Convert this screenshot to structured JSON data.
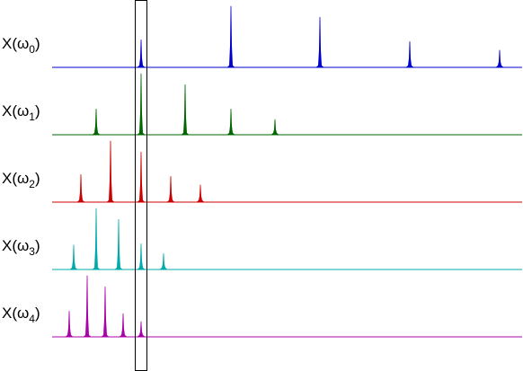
{
  "chart_data": {
    "type": "line",
    "title": "",
    "xlabel": "",
    "ylabel": "",
    "grid": false,
    "legend": "none",
    "x_range": [
      0,
      582
    ],
    "highlight_window": {
      "x_start": 150,
      "x_end": 163
    },
    "series": [
      {
        "label_base": "X(ω",
        "label_sub": "0",
        "label_close": ")",
        "color": "#0000cc",
        "peaks": [
          {
            "x": 157,
            "height": 0.45
          },
          {
            "x": 257,
            "height": 1.0
          },
          {
            "x": 356,
            "height": 0.82
          },
          {
            "x": 456,
            "height": 0.42
          },
          {
            "x": 556,
            "height": 0.28
          }
        ]
      },
      {
        "label_base": "X(ω",
        "label_sub": "1",
        "label_close": ")",
        "color": "#006600",
        "peaks": [
          {
            "x": 107,
            "height": 0.42
          },
          {
            "x": 157,
            "height": 1.0
          },
          {
            "x": 206,
            "height": 0.82
          },
          {
            "x": 257,
            "height": 0.42
          },
          {
            "x": 306,
            "height": 0.25
          }
        ]
      },
      {
        "label_base": "X(ω",
        "label_sub": "2",
        "label_close": ")",
        "color": "#cc0000",
        "peaks": [
          {
            "x": 90,
            "height": 0.45
          },
          {
            "x": 123,
            "height": 1.0
          },
          {
            "x": 157,
            "height": 0.82
          },
          {
            "x": 190,
            "height": 0.42
          },
          {
            "x": 223,
            "height": 0.28
          }
        ]
      },
      {
        "label_base": "X(ω",
        "label_sub": "3",
        "label_close": ")",
        "color": "#00aaaa",
        "peaks": [
          {
            "x": 82,
            "height": 0.4
          },
          {
            "x": 107,
            "height": 1.0
          },
          {
            "x": 132,
            "height": 0.82
          },
          {
            "x": 157,
            "height": 0.42
          },
          {
            "x": 182,
            "height": 0.26
          }
        ]
      },
      {
        "label_base": "X(ω",
        "label_sub": "4",
        "label_close": ")",
        "color": "#aa00aa",
        "peaks": [
          {
            "x": 77,
            "height": 0.42
          },
          {
            "x": 97,
            "height": 1.0
          },
          {
            "x": 117,
            "height": 0.82
          },
          {
            "x": 137,
            "height": 0.38
          },
          {
            "x": 157,
            "height": 0.25
          }
        ]
      }
    ]
  }
}
